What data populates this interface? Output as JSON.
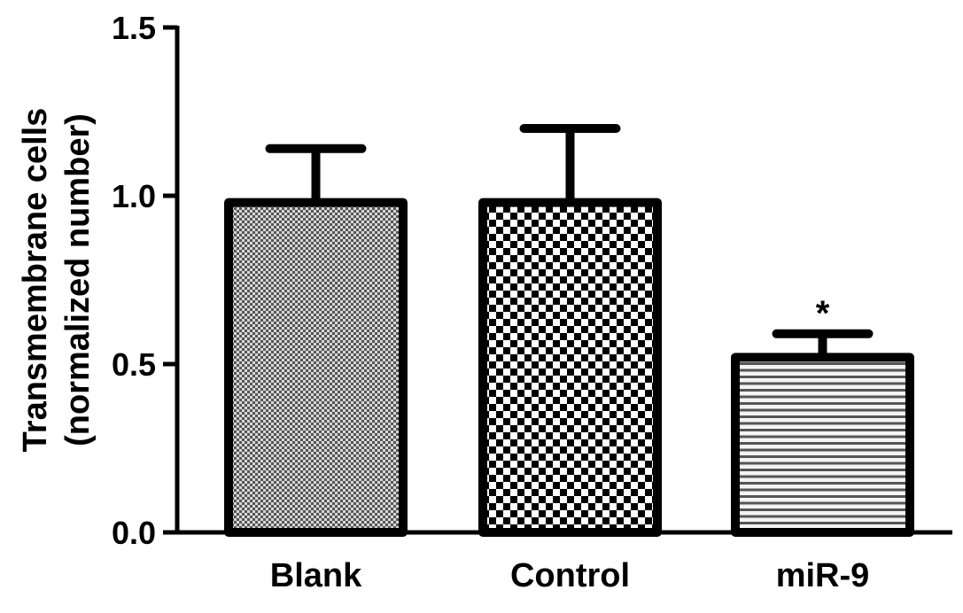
{
  "chart_data": {
    "type": "bar",
    "title": "",
    "xlabel": "",
    "ylabel": [
      "Transmembrane cells",
      "(normalized number)"
    ],
    "categories": [
      "Blank",
      "Control",
      "miR-9"
    ],
    "values": [
      0.98,
      0.98,
      0.52
    ],
    "error_upper": [
      1.14,
      1.2,
      0.59
    ],
    "patterns": [
      "fine-checker",
      "coarse-checker",
      "horizontal-lines"
    ],
    "annotations": [
      {
        "category": "miR-9",
        "text": "*"
      }
    ],
    "ylim": [
      0,
      1.5
    ],
    "yticks": [
      0.0,
      0.5,
      1.0,
      1.5
    ],
    "ytick_labels": [
      "0.0",
      "0.5",
      "1.0",
      "1.5"
    ],
    "grid": false,
    "colors": {
      "outline": "#000000",
      "background": "#ffffff"
    }
  }
}
